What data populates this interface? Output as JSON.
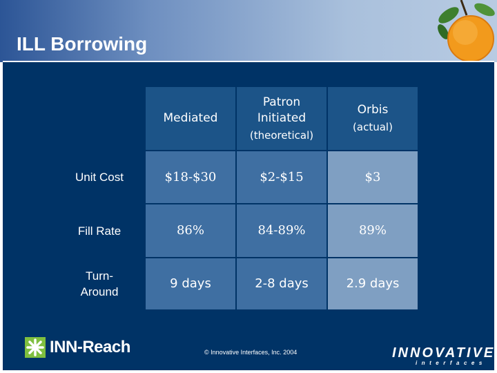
{
  "slide": {
    "title": "ILL Borrowing"
  },
  "table": {
    "headers": [
      {
        "main": "Mediated",
        "sub": ""
      },
      {
        "main": "Patron Initiated",
        "sub": "(theoretical)"
      },
      {
        "main": "Orbis",
        "sub": "(actual)"
      }
    ],
    "rows": [
      {
        "label": "Unit Cost",
        "values": [
          "$18-$30",
          "$2-$15",
          "$3"
        ]
      },
      {
        "label": "Fill Rate",
        "values": [
          "86%",
          "84-89%",
          "89%"
        ]
      },
      {
        "label": "Turn-Around",
        "values": [
          "9 days",
          "2-8 days",
          "2.9 days"
        ]
      }
    ]
  },
  "footer": {
    "left_logo": "INN-Reach",
    "copyright": "© Innovative Interfaces, Inc. 2004",
    "right_logo": "INNOVATIVE",
    "right_logo_sub": "interfaces"
  },
  "colors": {
    "body_background": "#003366",
    "header_cell": "#1c5488",
    "data_cell": "#3f6fa2",
    "data_cell_highlight": "#7f9fc2"
  },
  "icons": [
    "orange-fruit-icon",
    "asterisk-logo-icon"
  ]
}
